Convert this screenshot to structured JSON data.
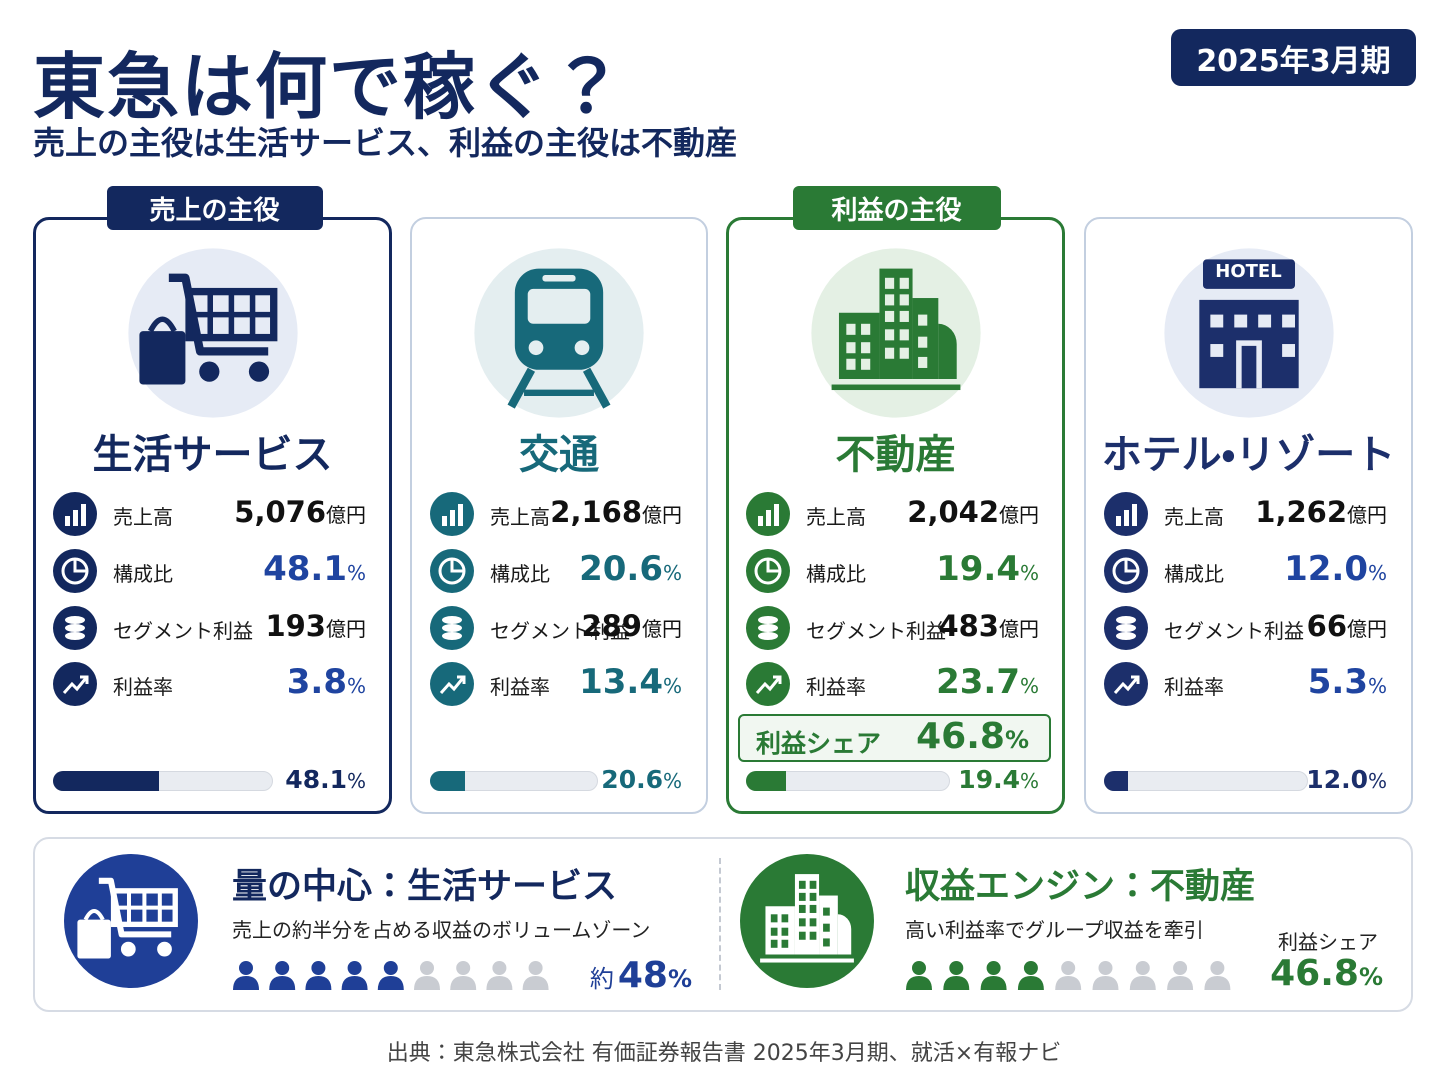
{
  "header": {
    "title": "東急は何で稼ぐ？",
    "subtitle": "売上の主役は生活サービス、利益の主役は不動産",
    "period": "2025年3月期"
  },
  "segments": [
    {
      "badge": "売上の主役",
      "name": "生活サービス",
      "rows": [
        {
          "label": "売上高",
          "value": "5,076",
          "unit": "億円"
        },
        {
          "label": "構成比",
          "value": "48.1",
          "unit": "%"
        },
        {
          "label": "セグメント利益",
          "value": "193",
          "unit": "億円"
        },
        {
          "label": "利益率",
          "value": "3.8",
          "unit": "%"
        }
      ],
      "bar": {
        "value": 48.1,
        "label": "48.1"
      },
      "bar_unit": "%"
    },
    {
      "name": "交通",
      "rows": [
        {
          "label": "売上高",
          "value": "2,168",
          "unit": "億円"
        },
        {
          "label": "構成比",
          "value": "20.6",
          "unit": "%"
        },
        {
          "label": "セグメント利益",
          "value": "289",
          "unit": "億円"
        },
        {
          "label": "利益率",
          "value": "13.4",
          "unit": "%"
        }
      ],
      "bar": {
        "value": 20.6,
        "label": "20.6"
      },
      "bar_unit": "%"
    },
    {
      "badge": "利益の主役",
      "name": "不動産",
      "rows": [
        {
          "label": "売上高",
          "value": "2,042",
          "unit": "億円"
        },
        {
          "label": "構成比",
          "value": "19.4",
          "unit": "%"
        },
        {
          "label": "セグメント利益",
          "value": "483",
          "unit": "億円"
        },
        {
          "label": "利益率",
          "value": "23.7",
          "unit": "%"
        }
      ],
      "profit_share": {
        "label": "利益シェア",
        "value": "46.8",
        "unit": "%"
      },
      "bar": {
        "value": 19.4,
        "label": "19.4"
      },
      "bar_unit": "%"
    },
    {
      "name": "ホテル・リゾート",
      "icon_text": "HOTEL",
      "rows": [
        {
          "label": "売上高",
          "value": "1,262",
          "unit": "億円"
        },
        {
          "label": "構成比",
          "value": "12.0",
          "unit": "%"
        },
        {
          "label": "セグメント利益",
          "value": "66",
          "unit": "億円"
        },
        {
          "label": "利益率",
          "value": "5.3",
          "unit": "%"
        }
      ],
      "bar": {
        "value": 12.0,
        "label": "12.0"
      },
      "bar_unit": "%"
    }
  ],
  "summary": [
    {
      "title": "量の中心：生活サービス",
      "text": "売上の約半分を占める収益のボリュームゾーン",
      "prefix": "約",
      "value": "48",
      "unit": "%"
    },
    {
      "title": "収益エンジン：不動産",
      "text": "高い利益率でグループ収益を牽引",
      "caption": "利益シェア",
      "value": "46.8",
      "unit": "%"
    }
  ],
  "source": "出典：東急株式会社 有価証券報告書 2025年3月期、就活×有報ナビ"
}
